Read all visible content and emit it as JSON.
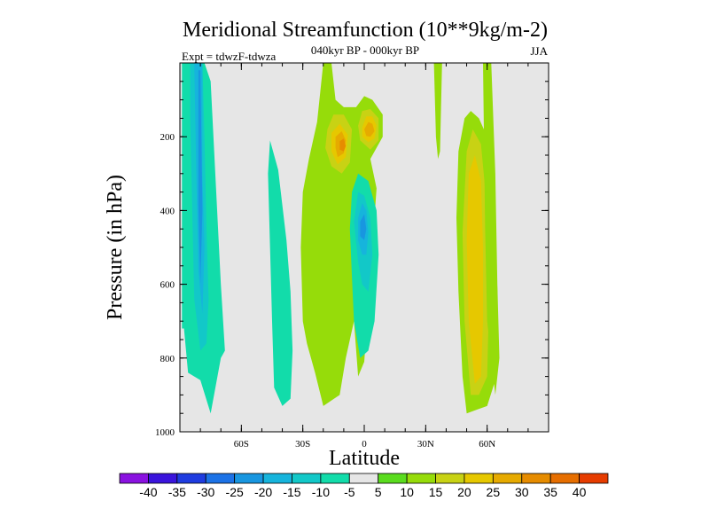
{
  "chart_data": {
    "type": "heatmap",
    "title": "Meridional Streamfunction (10**9kg/m-2)",
    "subtitle": "040kyr BP - 000kyr BP",
    "left_note": "Expt = tdwzF-tdwza",
    "right_note": "JJA",
    "xlabel": "Latitude",
    "ylabel": "Pressure (in hPa)",
    "xlim": [
      -90,
      90
    ],
    "ylim": [
      1000,
      0
    ],
    "x_ticks": [
      {
        "value": -60,
        "label": "60S"
      },
      {
        "value": -30,
        "label": "30S"
      },
      {
        "value": 0,
        "label": "0"
      },
      {
        "value": 30,
        "label": "30N"
      },
      {
        "value": 60,
        "label": "60N"
      }
    ],
    "y_ticks": [
      {
        "value": 200,
        "label": "200"
      },
      {
        "value": 400,
        "label": "400"
      },
      {
        "value": 600,
        "label": "600"
      },
      {
        "value": 800,
        "label": "800"
      },
      {
        "value": 1000,
        "label": "1000"
      }
    ],
    "background_color": "#e6e6e6",
    "colorbar": {
      "boundaries": [
        -45,
        -40,
        -35,
        -30,
        -25,
        -20,
        -15,
        -10,
        -5,
        5,
        10,
        15,
        20,
        25,
        30,
        35,
        40,
        45
      ],
      "labels": [
        "-40",
        "-35",
        "-30",
        "-25",
        "-20",
        "-15",
        "-10",
        "-5",
        "5",
        "10",
        "15",
        "20",
        "25",
        "30",
        "35",
        "40"
      ],
      "colors": [
        "#8a12e0",
        "#3a14dc",
        "#1f3ce0",
        "#1c72e6",
        "#1896e0",
        "#16b4dc",
        "#12c8c8",
        "#12dcaa",
        "#e6e6e6",
        "#5adc1e",
        "#96dc0a",
        "#c8d214",
        "#e6c800",
        "#e6aa00",
        "#e68c00",
        "#e66e00",
        "#e63c00"
      ]
    },
    "regions": [
      {
        "name": "sh-polar-cell",
        "level": -10,
        "points": [
          [
            -89,
            0
          ],
          [
            -78,
            0
          ],
          [
            -75,
            50
          ],
          [
            -70,
            600
          ],
          [
            -68,
            780
          ],
          [
            -70,
            800
          ],
          [
            -75,
            950
          ],
          [
            -80,
            860
          ],
          [
            -86,
            840
          ],
          [
            -88,
            720
          ],
          [
            -89,
            720
          ]
        ]
      },
      {
        "name": "sh-polar-core-15",
        "level": -15,
        "points": [
          [
            -85,
            0
          ],
          [
            -79,
            0
          ],
          [
            -78,
            200
          ],
          [
            -77,
            450
          ],
          [
            -76,
            640
          ],
          [
            -77,
            760
          ],
          [
            -80,
            780
          ],
          [
            -83,
            640
          ],
          [
            -84,
            400
          ],
          [
            -85,
            150
          ]
        ]
      },
      {
        "name": "sh-polar-core-20",
        "level": -20,
        "points": [
          [
            -83,
            0
          ],
          [
            -79,
            0
          ],
          [
            -79,
            300
          ],
          [
            -78,
            500
          ],
          [
            -79,
            680
          ],
          [
            -81,
            560
          ],
          [
            -82,
            300
          ]
        ]
      },
      {
        "name": "sh-polar-core-25",
        "level": -25,
        "points": [
          [
            -81,
            20
          ],
          [
            -80,
            20
          ],
          [
            -79,
            400
          ],
          [
            -80,
            600
          ],
          [
            -81,
            380
          ]
        ]
      },
      {
        "name": "sh-midlat-band",
        "level": -10,
        "points": [
          [
            -46,
            210
          ],
          [
            -42,
            290
          ],
          [
            -38,
            480
          ],
          [
            -36,
            620
          ],
          [
            -35,
            780
          ],
          [
            -36,
            910
          ],
          [
            -40,
            930
          ],
          [
            -44,
            880
          ],
          [
            -45,
            700
          ],
          [
            -46,
            500
          ],
          [
            -47,
            300
          ]
        ]
      },
      {
        "name": "equatorial-green-band",
        "level": 10,
        "points": [
          [
            -30,
            350
          ],
          [
            -27,
            260
          ],
          [
            -23,
            160
          ],
          [
            -20,
            0
          ],
          [
            -16,
            0
          ],
          [
            -14,
            100
          ],
          [
            -10,
            120
          ],
          [
            -4,
            120
          ],
          [
            0,
            90
          ],
          [
            4,
            100
          ],
          [
            9,
            140
          ],
          [
            9,
            200
          ],
          [
            3,
            260
          ],
          [
            6,
            340
          ],
          [
            4,
            500
          ],
          [
            0,
            810
          ],
          [
            -3,
            850
          ],
          [
            -5,
            700
          ],
          [
            -9,
            800
          ],
          [
            -12,
            900
          ],
          [
            -20,
            930
          ],
          [
            -24,
            840
          ],
          [
            -28,
            760
          ],
          [
            -30,
            700
          ],
          [
            -31,
            500
          ]
        ]
      },
      {
        "name": "hadley-sh-15",
        "level": 15,
        "points": [
          [
            -18,
            180
          ],
          [
            -15,
            140
          ],
          [
            -10,
            140
          ],
          [
            -6,
            180
          ],
          [
            -7,
            270
          ],
          [
            -11,
            300
          ],
          [
            -16,
            280
          ],
          [
            -19,
            230
          ]
        ]
      },
      {
        "name": "hadley-sh-20",
        "level": 20,
        "points": [
          [
            -16,
            190
          ],
          [
            -12,
            165
          ],
          [
            -8,
            195
          ],
          [
            -9,
            255
          ],
          [
            -13,
            275
          ],
          [
            -16,
            240
          ]
        ]
      },
      {
        "name": "hadley-sh-25",
        "level": 25,
        "points": [
          [
            -14,
            200
          ],
          [
            -11,
            185
          ],
          [
            -9,
            210
          ],
          [
            -10,
            245
          ],
          [
            -13,
            255
          ],
          [
            -14,
            230
          ]
        ]
      },
      {
        "name": "hadley-sh-30",
        "level": 30,
        "points": [
          [
            -12,
            212
          ],
          [
            -10,
            205
          ],
          [
            -9,
            225
          ],
          [
            -10,
            240
          ],
          [
            -12,
            235
          ]
        ]
      },
      {
        "name": "hadley-nh-15",
        "level": 15,
        "points": [
          [
            -3,
            170
          ],
          [
            -1,
            130
          ],
          [
            3,
            125
          ],
          [
            7,
            150
          ],
          [
            7,
            210
          ],
          [
            3,
            235
          ],
          [
            -2,
            210
          ]
        ]
      },
      {
        "name": "hadley-nh-20",
        "level": 20,
        "points": [
          [
            -1,
            175
          ],
          [
            1,
            145
          ],
          [
            4,
            145
          ],
          [
            6,
            170
          ],
          [
            5,
            205
          ],
          [
            2,
            215
          ],
          [
            -1,
            200
          ]
        ]
      },
      {
        "name": "hadley-nh-25",
        "level": 25,
        "points": [
          [
            0,
            180
          ],
          [
            2,
            160
          ],
          [
            4,
            165
          ],
          [
            5,
            185
          ],
          [
            3,
            200
          ],
          [
            1,
            198
          ]
        ]
      },
      {
        "name": "equatorial-neg-cell",
        "level": -10,
        "points": [
          [
            -7,
            450
          ],
          [
            -6,
            350
          ],
          [
            -3,
            300
          ],
          [
            2,
            320
          ],
          [
            6,
            400
          ],
          [
            7,
            520
          ],
          [
            5,
            700
          ],
          [
            2,
            780
          ],
          [
            -2,
            800
          ],
          [
            -5,
            700
          ],
          [
            -6,
            580
          ]
        ]
      },
      {
        "name": "equatorial-neg-15",
        "level": -15,
        "points": [
          [
            -5,
            430
          ],
          [
            -3,
            350
          ],
          [
            0,
            360
          ],
          [
            3,
            420
          ],
          [
            4,
            520
          ],
          [
            2,
            620
          ],
          [
            -1,
            600
          ],
          [
            -3,
            540
          ]
        ]
      },
      {
        "name": "equatorial-neg-20",
        "level": -20,
        "points": [
          [
            -3,
            420
          ],
          [
            -1,
            380
          ],
          [
            1,
            400
          ],
          [
            2,
            460
          ],
          [
            1,
            520
          ],
          [
            -1,
            520
          ],
          [
            -3,
            480
          ]
        ]
      },
      {
        "name": "equatorial-neg-25",
        "level": -25,
        "points": [
          [
            -2,
            430
          ],
          [
            0,
            410
          ],
          [
            1,
            450
          ],
          [
            0,
            480
          ],
          [
            -2,
            470
          ]
        ]
      },
      {
        "name": "nh-midlat-core",
        "level": 10,
        "points": [
          [
            46,
            240
          ],
          [
            49,
            150
          ],
          [
            52,
            130
          ],
          [
            56,
            150
          ],
          [
            60,
            200
          ],
          [
            64,
            420
          ],
          [
            65,
            620
          ],
          [
            64,
            860
          ],
          [
            60,
            930
          ],
          [
            55,
            940
          ],
          [
            50,
            950
          ],
          [
            48,
            850
          ],
          [
            46,
            620
          ],
          [
            45,
            420
          ]
        ]
      },
      {
        "name": "nh-midlat-core-15",
        "level": 15,
        "points": [
          [
            50,
            240
          ],
          [
            53,
            180
          ],
          [
            57,
            220
          ],
          [
            60,
            400
          ],
          [
            61,
            620
          ],
          [
            60,
            850
          ],
          [
            56,
            900
          ],
          [
            52,
            900
          ],
          [
            49,
            700
          ],
          [
            48,
            460
          ]
        ]
      },
      {
        "name": "nh-midlat-core-20",
        "level": 20,
        "points": [
          [
            51,
            300
          ],
          [
            54,
            250
          ],
          [
            57,
            320
          ],
          [
            58,
            500
          ],
          [
            58,
            700
          ],
          [
            57,
            850
          ],
          [
            54,
            870
          ],
          [
            51,
            700
          ],
          [
            50,
            480
          ]
        ]
      },
      {
        "name": "nh-high-green",
        "level": 10,
        "points": [
          [
            58,
            0
          ],
          [
            62,
            0
          ],
          [
            64,
            300
          ],
          [
            65,
            600
          ],
          [
            66,
            800
          ],
          [
            64,
            900
          ],
          [
            60,
            700
          ],
          [
            59,
            450
          ]
        ]
      },
      {
        "name": "nh-upper-strip",
        "level": 10,
        "points": [
          [
            34,
            0
          ],
          [
            38,
            0
          ],
          [
            37,
            240
          ],
          [
            36,
            260
          ],
          [
            35,
            200
          ]
        ]
      }
    ]
  }
}
